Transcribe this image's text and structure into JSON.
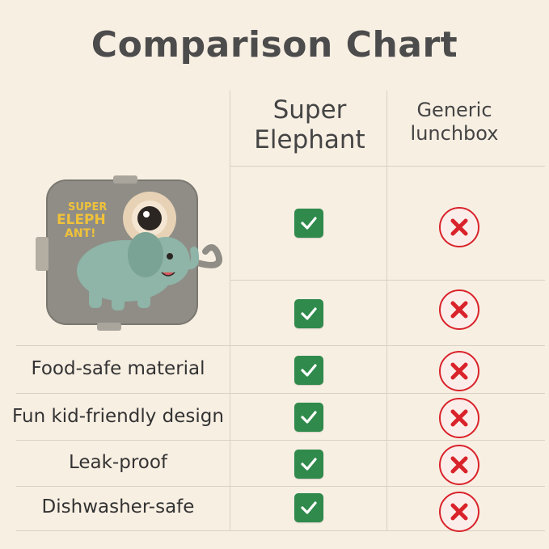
{
  "title": "Comparison Chart",
  "columns": {
    "super": "Super Elephant",
    "generic": "Generic lunchbox"
  },
  "product_image": {
    "brand_text_line1": "SUPER",
    "brand_text_line2": "ELEPH",
    "brand_text_line3": "ANT!"
  },
  "rows": [
    {
      "label": "",
      "super": "check",
      "generic": "cross"
    },
    {
      "label": "",
      "super": "check",
      "generic": "cross"
    },
    {
      "label": "Food-safe material",
      "super": "check",
      "generic": "cross"
    },
    {
      "label": "Fun kid-friendly design",
      "super": "check",
      "generic": "cross"
    },
    {
      "label": "Leak-proof",
      "super": "check",
      "generic": "cross"
    },
    {
      "label": "Dishwasher-safe",
      "super": "check",
      "generic": "cross"
    }
  ],
  "colors": {
    "background": "#f8efe3",
    "check": "#2f8a4c",
    "cross": "#d9232b"
  }
}
